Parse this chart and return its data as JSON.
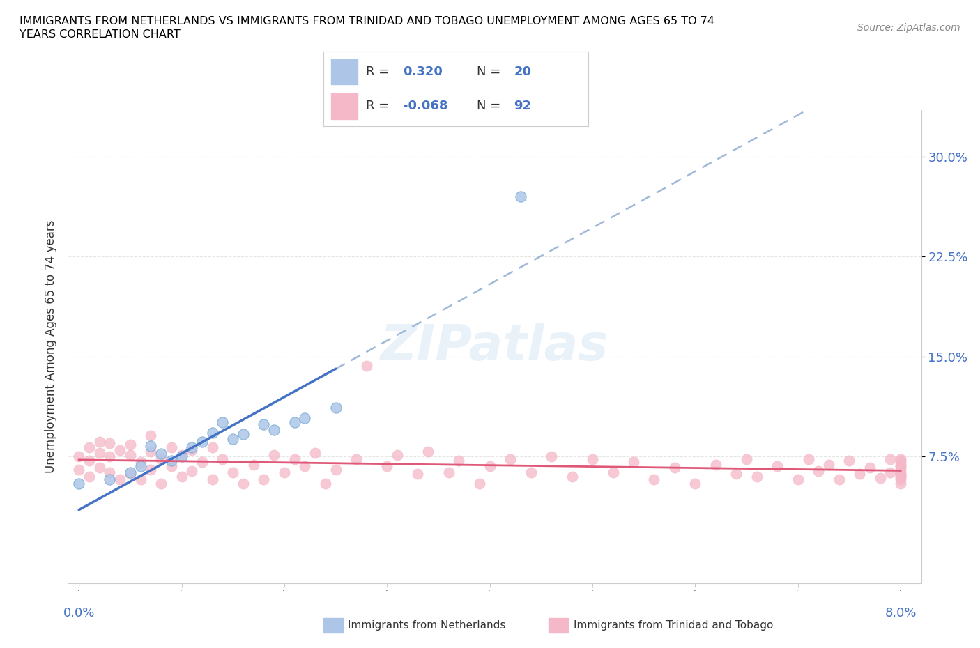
{
  "title_line1": "IMMIGRANTS FROM NETHERLANDS VS IMMIGRANTS FROM TRINIDAD AND TOBAGO UNEMPLOYMENT AMONG AGES 65 TO 74",
  "title_line2": "YEARS CORRELATION CHART",
  "source": "Source: ZipAtlas.com",
  "ylabel": "Unemployment Among Ages 65 to 74 years",
  "r_netherlands": 0.32,
  "n_netherlands": 20,
  "r_trinidad": -0.068,
  "n_trinidad": 92,
  "color_netherlands": "#adc6e8",
  "color_trinidad": "#f4b8c8",
  "line_color_netherlands": "#4472c4",
  "line_color_trinidad": "#e05878",
  "dashed_line_color": "#a0b8d8",
  "yticks": [
    0.075,
    0.15,
    0.225,
    0.3
  ],
  "ytick_labels": [
    "7.5%",
    "15.0%",
    "22.5%",
    "30.0%"
  ],
  "xlim": [
    0.0,
    0.08
  ],
  "ylim": [
    0.0,
    0.32
  ],
  "watermark_color": "#d0dff0",
  "nl_x": [
    0.0,
    0.003,
    0.005,
    0.006,
    0.007,
    0.008,
    0.009,
    0.01,
    0.011,
    0.012,
    0.013,
    0.014,
    0.015,
    0.016,
    0.018,
    0.019,
    0.021,
    0.022,
    0.025,
    0.043
  ],
  "nl_y": [
    0.055,
    0.058,
    0.063,
    0.068,
    0.083,
    0.077,
    0.072,
    0.075,
    0.082,
    0.086,
    0.093,
    0.101,
    0.088,
    0.092,
    0.099,
    0.095,
    0.101,
    0.104,
    0.112,
    0.27
  ],
  "tt_x": [
    0.0,
    0.0,
    0.001,
    0.001,
    0.001,
    0.002,
    0.002,
    0.002,
    0.003,
    0.003,
    0.003,
    0.004,
    0.004,
    0.005,
    0.005,
    0.005,
    0.006,
    0.006,
    0.007,
    0.007,
    0.007,
    0.008,
    0.008,
    0.009,
    0.009,
    0.01,
    0.01,
    0.011,
    0.011,
    0.012,
    0.013,
    0.013,
    0.014,
    0.015,
    0.016,
    0.017,
    0.018,
    0.019,
    0.02,
    0.021,
    0.022,
    0.023,
    0.024,
    0.025,
    0.027,
    0.028,
    0.03,
    0.031,
    0.033,
    0.034,
    0.036,
    0.037,
    0.039,
    0.04,
    0.042,
    0.044,
    0.046,
    0.048,
    0.05,
    0.052,
    0.054,
    0.056,
    0.058,
    0.06,
    0.062,
    0.064,
    0.065,
    0.066,
    0.068,
    0.07,
    0.071,
    0.072,
    0.073,
    0.074,
    0.075,
    0.076,
    0.077,
    0.078,
    0.079,
    0.079,
    0.08,
    0.08,
    0.08,
    0.08,
    0.08,
    0.08,
    0.08,
    0.08,
    0.08,
    0.08,
    0.08,
    0.08
  ],
  "tt_y": [
    0.065,
    0.075,
    0.06,
    0.072,
    0.082,
    0.067,
    0.078,
    0.086,
    0.063,
    0.075,
    0.085,
    0.058,
    0.08,
    0.062,
    0.076,
    0.084,
    0.058,
    0.071,
    0.065,
    0.079,
    0.091,
    0.055,
    0.073,
    0.068,
    0.082,
    0.06,
    0.076,
    0.064,
    0.08,
    0.071,
    0.058,
    0.082,
    0.073,
    0.063,
    0.055,
    0.069,
    0.058,
    0.076,
    0.063,
    0.073,
    0.068,
    0.078,
    0.055,
    0.065,
    0.073,
    0.143,
    0.068,
    0.076,
    0.062,
    0.079,
    0.063,
    0.072,
    0.055,
    0.068,
    0.073,
    0.063,
    0.075,
    0.06,
    0.073,
    0.063,
    0.071,
    0.058,
    0.067,
    0.055,
    0.069,
    0.062,
    0.073,
    0.06,
    0.068,
    0.058,
    0.073,
    0.064,
    0.069,
    0.058,
    0.072,
    0.062,
    0.067,
    0.059,
    0.073,
    0.063,
    0.06,
    0.068,
    0.073,
    0.062,
    0.058,
    0.065,
    0.072,
    0.06,
    0.068,
    0.055,
    0.062,
    0.07
  ]
}
